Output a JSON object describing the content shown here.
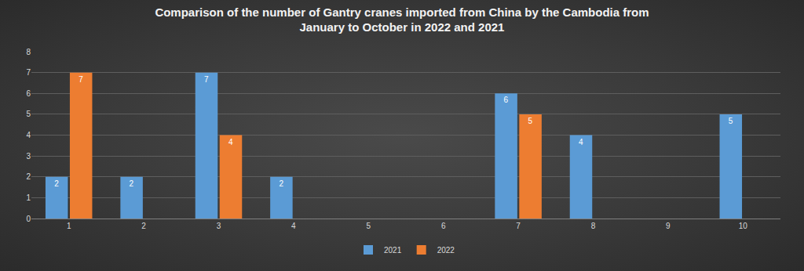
{
  "chart_data": {
    "type": "bar",
    "title": "Comparison of the number of Gantry cranes imported from China by the Cambodia from\nJanuary to October in 2022 and 2021",
    "categories": [
      "1",
      "2",
      "3",
      "4",
      "5",
      "6",
      "7",
      "8",
      "9",
      "10"
    ],
    "series": [
      {
        "name": "2021",
        "color": "#5b9bd5",
        "values": [
          2,
          2,
          7,
          2,
          null,
          null,
          6,
          4,
          null,
          5
        ]
      },
      {
        "name": "2022",
        "color": "#ed7d31",
        "values": [
          7,
          null,
          4,
          null,
          null,
          null,
          5,
          null,
          null,
          null
        ]
      }
    ],
    "ylim": [
      0,
      8
    ],
    "yticks": [
      0,
      1,
      2,
      3,
      4,
      5,
      6,
      7,
      8
    ],
    "grid": true,
    "legend": "bottom",
    "data_labels": true
  }
}
